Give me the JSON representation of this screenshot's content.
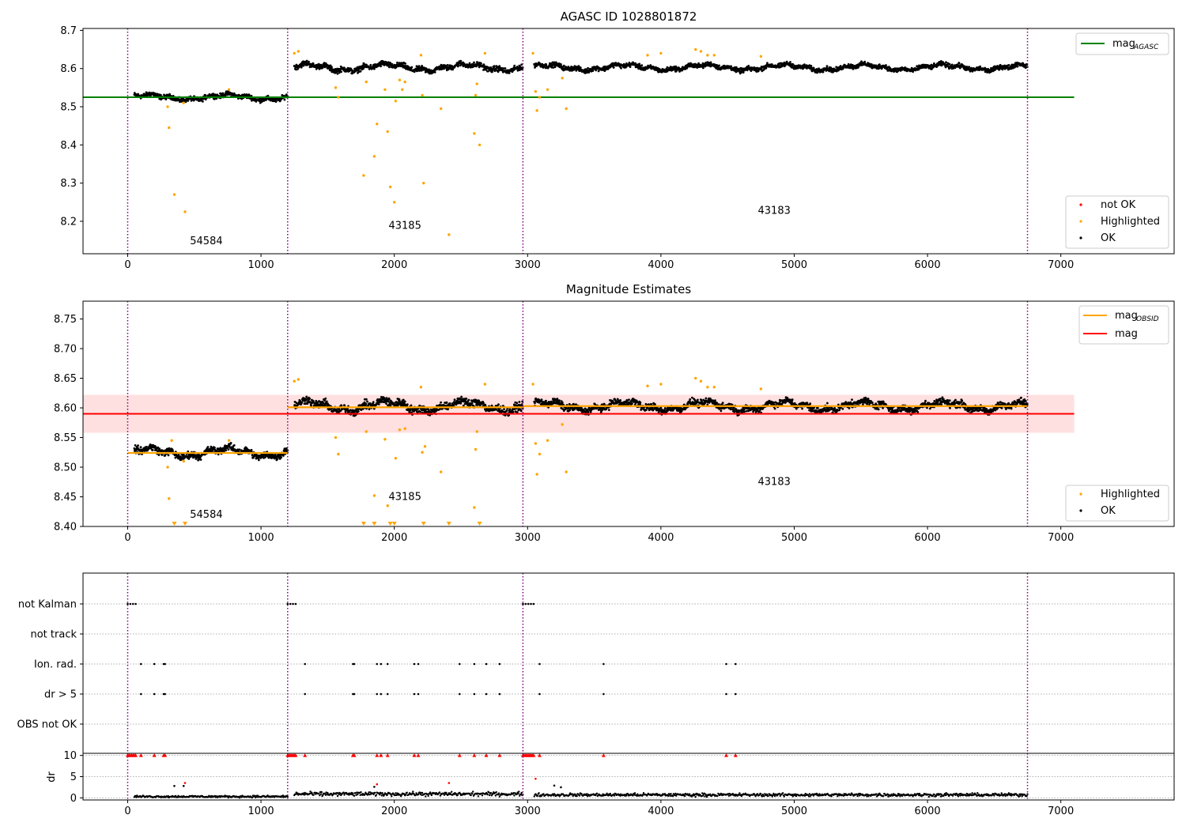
{
  "chart_data": [
    {
      "type": "scatter",
      "title": "AGASC ID 1028801872",
      "xlim": [
        -335,
        7850
      ],
      "ylim": [
        8.115,
        8.705
      ],
      "xticks": [
        0,
        1000,
        2000,
        3000,
        4000,
        5000,
        6000,
        7000
      ],
      "yticks": [
        8.2,
        8.3,
        8.4,
        8.5,
        8.6,
        8.7
      ],
      "ytick_labels": [
        "8.2",
        "8.3",
        "8.4",
        "8.5",
        "8.6",
        "8.7"
      ],
      "obsid_boundaries": [
        0,
        1200,
        2965,
        6750
      ],
      "annotations": [
        {
          "text": "54584",
          "x": 590,
          "y": 8.14
        },
        {
          "text": "43185",
          "x": 2080,
          "y": 8.18
        },
        {
          "text": "43183",
          "x": 4850,
          "y": 8.22
        }
      ],
      "series": [
        {
          "name": "mag",
          "name_sub": "AGASC",
          "kind": "hline",
          "color": "#008000",
          "y": 8.525,
          "x_range": [
            -335,
            7100
          ]
        },
        {
          "name": "OK",
          "kind": "band",
          "color": "#000000",
          "segments": [
            {
              "x_range": [
                50,
                1200
              ],
              "center": 8.525,
              "spread": 0.012
            },
            {
              "x_range": [
                1250,
                2965
              ],
              "center": 8.603,
              "spread": 0.014
            },
            {
              "x_range": [
                3050,
                6750
              ],
              "center": 8.603,
              "spread": 0.012
            }
          ]
        },
        {
          "name": "Highlighted",
          "kind": "points",
          "color": "#ffa500",
          "points": [
            [
              300,
              8.5
            ],
            [
              310,
              8.445
            ],
            [
              350,
              8.27
            ],
            [
              430,
              8.225
            ],
            [
              420,
              8.51
            ],
            [
              760,
              8.545
            ],
            [
              1560,
              8.55
            ],
            [
              1580,
              8.525
            ],
            [
              1770,
              8.32
            ],
            [
              1790,
              8.565
            ],
            [
              1850,
              8.37
            ],
            [
              1870,
              8.455
            ],
            [
              1930,
              8.545
            ],
            [
              1950,
              8.435
            ],
            [
              1970,
              8.29
            ],
            [
              2000,
              8.25
            ],
            [
              2010,
              8.515
            ],
            [
              2040,
              8.57
            ],
            [
              2060,
              8.545
            ],
            [
              2080,
              8.565
            ],
            [
              2220,
              8.3
            ],
            [
              2210,
              8.53
            ],
            [
              2350,
              8.495
            ],
            [
              2410,
              8.165
            ],
            [
              2600,
              8.43
            ],
            [
              2610,
              8.53
            ],
            [
              2620,
              8.56
            ],
            [
              2640,
              8.4
            ],
            [
              3060,
              8.54
            ],
            [
              3070,
              8.49
            ],
            [
              3090,
              8.525
            ],
            [
              3150,
              8.545
            ],
            [
              3260,
              8.575
            ],
            [
              3290,
              8.495
            ],
            [
              1250,
              8.64
            ],
            [
              1280,
              8.645
            ],
            [
              2200,
              8.635
            ],
            [
              2680,
              8.64
            ],
            [
              3040,
              8.64
            ],
            [
              3900,
              8.635
            ],
            [
              4000,
              8.64
            ],
            [
              4260,
              8.65
            ],
            [
              4300,
              8.645
            ],
            [
              4350,
              8.635
            ],
            [
              4400,
              8.635
            ],
            [
              4750,
              8.632
            ]
          ]
        },
        {
          "name": "not OK",
          "kind": "points",
          "color": "#ff0000",
          "points": []
        }
      ],
      "legend": [
        {
          "loc": "top-right",
          "entries": [
            {
              "label": "mag",
              "sub": "AGASC",
              "marker": "line",
              "color": "#008000"
            }
          ]
        },
        {
          "loc": "bottom-right",
          "entries": [
            {
              "label": "not OK",
              "marker": "dot",
              "color": "#ff0000"
            },
            {
              "label": "Highlighted",
              "marker": "dot",
              "color": "#ffa500"
            },
            {
              "label": "OK",
              "marker": "dot",
              "color": "#000000"
            }
          ]
        }
      ]
    },
    {
      "type": "scatter",
      "title": "Magnitude Estimates",
      "xlim": [
        -335,
        7850
      ],
      "ylim": [
        8.4,
        8.78
      ],
      "xticks": [
        0,
        1000,
        2000,
        3000,
        4000,
        5000,
        6000,
        7000
      ],
      "yticks": [
        8.4,
        8.45,
        8.5,
        8.55,
        8.6,
        8.65,
        8.7,
        8.75
      ],
      "ytick_labels": [
        "8.40",
        "8.45",
        "8.50",
        "8.55",
        "8.60",
        "8.65",
        "8.70",
        "8.75"
      ],
      "obsid_boundaries": [
        0,
        1200,
        2965,
        6750
      ],
      "annotations": [
        {
          "text": "54584",
          "x": 590,
          "y": 8.415
        },
        {
          "text": "43185",
          "x": 2080,
          "y": 8.445
        },
        {
          "text": "43183",
          "x": 4850,
          "y": 8.47
        }
      ],
      "series": [
        {
          "name": "mag",
          "kind": "hline",
          "color": "#ff0000",
          "y": 8.59,
          "x_range": [
            -335,
            7100
          ],
          "band": [
            8.558,
            8.622
          ]
        },
        {
          "name": "mag",
          "name_sub": "OBSID",
          "kind": "steps",
          "color": "#ffa500",
          "segments": [
            {
              "x_range": [
                0,
                1200
              ],
              "y": 8.524
            },
            {
              "x_range": [
                1200,
                2965
              ],
              "y": 8.601
            },
            {
              "x_range": [
                2965,
                6750
              ],
              "y": 8.603
            }
          ]
        },
        {
          "name": "OK",
          "kind": "band",
          "color": "#000000",
          "segments": [
            {
              "x_range": [
                50,
                1200
              ],
              "center": 8.525,
              "spread": 0.012
            },
            {
              "x_range": [
                1250,
                2965
              ],
              "center": 8.603,
              "spread": 0.014
            },
            {
              "x_range": [
                3050,
                6750
              ],
              "center": 8.603,
              "spread": 0.012
            }
          ]
        },
        {
          "name": "Highlighted",
          "kind": "points",
          "color": "#ffa500",
          "points": [
            [
              300,
              8.5
            ],
            [
              310,
              8.447
            ],
            [
              330,
              8.545
            ],
            [
              420,
              8.51
            ],
            [
              760,
              8.545
            ],
            [
              1560,
              8.55
            ],
            [
              1580,
              8.522
            ],
            [
              1790,
              8.56
            ],
            [
              1850,
              8.452
            ],
            [
              1930,
              8.547
            ],
            [
              1950,
              8.435
            ],
            [
              2010,
              8.515
            ],
            [
              2040,
              8.563
            ],
            [
              2080,
              8.565
            ],
            [
              2210,
              8.525
            ],
            [
              2230,
              8.535
            ],
            [
              2350,
              8.492
            ],
            [
              2600,
              8.432
            ],
            [
              2610,
              8.53
            ],
            [
              2620,
              8.56
            ],
            [
              3060,
              8.54
            ],
            [
              3070,
              8.488
            ],
            [
              3090,
              8.522
            ],
            [
              3150,
              8.545
            ],
            [
              3260,
              8.572
            ],
            [
              3290,
              8.492
            ],
            [
              1250,
              8.645
            ],
            [
              1280,
              8.648
            ],
            [
              2200,
              8.635
            ],
            [
              2680,
              8.64
            ],
            [
              3040,
              8.64
            ],
            [
              3900,
              8.637
            ],
            [
              4000,
              8.64
            ],
            [
              4260,
              8.65
            ],
            [
              4300,
              8.645
            ],
            [
              4350,
              8.635
            ],
            [
              4400,
              8.635
            ],
            [
              4750,
              8.632
            ]
          ]
        },
        {
          "name": "below range",
          "kind": "floor-markers",
          "color": "#ffa500",
          "x": [
            350,
            430,
            1770,
            1850,
            1970,
            2000,
            2220,
            2410,
            2640
          ]
        }
      ],
      "legend": [
        {
          "loc": "top-right",
          "entries": [
            {
              "label": "mag",
              "sub": "OBSID",
              "marker": "line",
              "color": "#ffa500"
            },
            {
              "label": "mag",
              "marker": "line",
              "color": "#ff0000"
            }
          ]
        },
        {
          "loc": "bottom-right",
          "entries": [
            {
              "label": "Highlighted",
              "marker": "dot",
              "color": "#ffa500"
            },
            {
              "label": "OK",
              "marker": "dot",
              "color": "#000000"
            }
          ]
        }
      ]
    },
    {
      "type": "scatter",
      "title": "",
      "xlim": [
        -335,
        7850
      ],
      "xticks": [
        0,
        1000,
        2000,
        3000,
        4000,
        5000,
        6000,
        7000
      ],
      "obsid_boundaries": [
        0,
        1200,
        2965,
        6750
      ],
      "flag_rows": [
        {
          "label": "not Kalman",
          "x": [
            0,
            20,
            40,
            60,
            1200,
            1220,
            1240,
            1260,
            2965,
            2985,
            3005,
            3025,
            3045
          ]
        },
        {
          "label": "not track",
          "x": []
        },
        {
          "label": "Ion. rad.",
          "x": [
            100,
            200,
            270,
            280,
            1330,
            1690,
            1700,
            1870,
            1900,
            1950,
            2150,
            2180,
            2490,
            2600,
            2690,
            2790,
            3090,
            3570,
            4490,
            4560
          ]
        },
        {
          "label": "dr > 5",
          "x": [
            100,
            200,
            270,
            280,
            1330,
            1690,
            1700,
            1870,
            1900,
            1950,
            2150,
            2180,
            2490,
            2600,
            2690,
            2790,
            3090,
            3570,
            4490,
            4560
          ]
        },
        {
          "label": "OBS not OK",
          "x": []
        }
      ],
      "dr_axis": {
        "ylabel": "dr",
        "ylim": [
          -0.5,
          10.5
        ],
        "yticks": [
          0,
          5,
          10
        ],
        "ytick_labels": [
          "0",
          "5",
          "10"
        ],
        "ok_segments": [
          {
            "x_range": [
              50,
              1200
            ],
            "center": 0.3,
            "spread": 0.25
          },
          {
            "x_range": [
              1250,
              2965
            ],
            "center": 0.9,
            "spread": 0.5
          },
          {
            "x_range": [
              3050,
              6750
            ],
            "center": 0.7,
            "spread": 0.4
          }
        ],
        "extra_points": [
          {
            "x": 350,
            "y": 2.8,
            "color": "#000000"
          },
          {
            "x": 420,
            "y": 2.8,
            "color": "#000000"
          },
          {
            "x": 430,
            "y": 3.5,
            "color": "#ff0000"
          },
          {
            "x": 1850,
            "y": 2.6,
            "color": "#000000"
          },
          {
            "x": 1870,
            "y": 3.2,
            "color": "#ff0000"
          },
          {
            "x": 2410,
            "y": 3.5,
            "color": "#ff0000"
          },
          {
            "x": 3060,
            "y": 4.5,
            "color": "#ff0000"
          },
          {
            "x": 3200,
            "y": 2.9,
            "color": "#000000"
          },
          {
            "x": 3250,
            "y": 2.5,
            "color": "#000000"
          }
        ],
        "clipped_x": [
          0,
          10,
          20,
          30,
          40,
          50,
          60,
          100,
          200,
          270,
          280,
          1200,
          1210,
          1220,
          1230,
          1240,
          1250,
          1260,
          1330,
          1690,
          1700,
          1870,
          1900,
          1950,
          2150,
          2180,
          2490,
          2600,
          2690,
          2790,
          2965,
          2975,
          2985,
          2995,
          3005,
          3015,
          3025,
          3035,
          3045,
          3090,
          3570,
          4490,
          4560
        ]
      }
    }
  ]
}
